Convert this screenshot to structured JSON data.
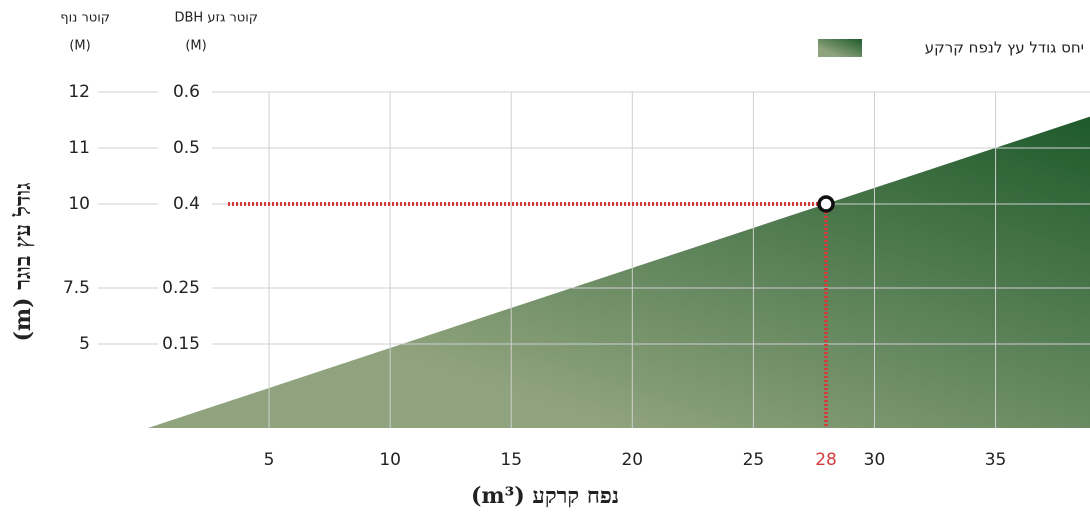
{
  "chart_data": {
    "type": "area",
    "legend": "יחס גודל עץ לנפח קרקע",
    "xlabel": "נפח קרקע (m³)",
    "ylabel": "גודל עץ בוגר (m)",
    "canopy_header": "קוטר נוף",
    "canopy_unit": "(M)",
    "dbh_header": "קוטר גזע DBH",
    "dbh_unit": "(M)",
    "xlim": [
      0,
      38.9
    ],
    "xticks": [
      5,
      10,
      15,
      20,
      25,
      30,
      35
    ],
    "ylim": [
      0,
      0.6
    ],
    "yticks": [
      0.6,
      0.5,
      0.4,
      0.25,
      0.15
    ],
    "canopy_ticks": [
      12,
      11,
      10,
      7.5,
      5
    ],
    "grid": true,
    "area": {
      "x": [
        0,
        38.9
      ],
      "values": [
        0,
        0.556
      ],
      "color_light": "#8fa37e",
      "color_dark": "#1e5a2b"
    },
    "point": {
      "x": 28,
      "y": 0.4,
      "color": "#d43b3b"
    }
  }
}
